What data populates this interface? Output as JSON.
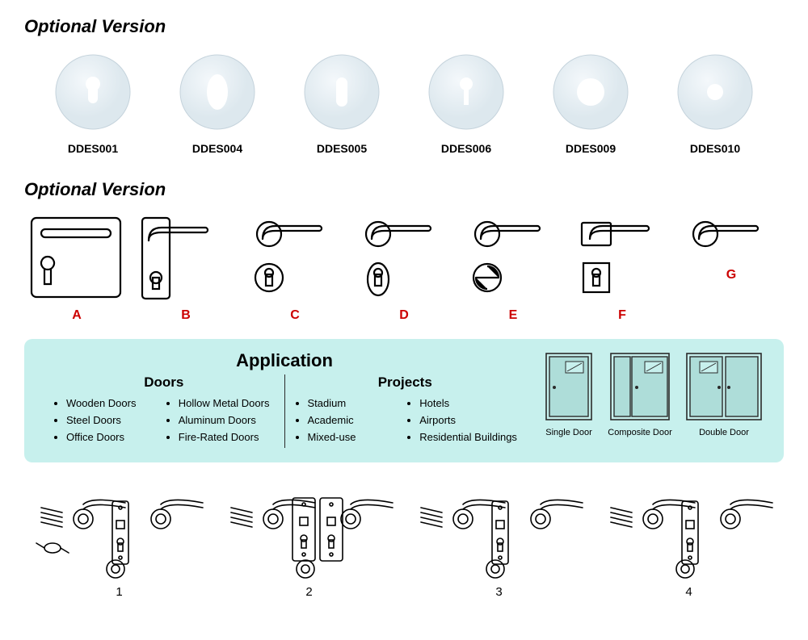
{
  "headings": {
    "optional1": "Optional Version",
    "optional2": "Optional Version"
  },
  "escutcheons": [
    {
      "code": "DDES001",
      "variant": "euro"
    },
    {
      "code": "DDES004",
      "variant": "oval"
    },
    {
      "code": "DDES005",
      "variant": "slot"
    },
    {
      "code": "DDES006",
      "variant": "keyhole"
    },
    {
      "code": "DDES009",
      "variant": "ring"
    },
    {
      "code": "DDES010",
      "variant": "hole"
    }
  ],
  "handles": [
    {
      "letter": "A",
      "variant": "plate-square"
    },
    {
      "letter": "B",
      "variant": "plate-narrow"
    },
    {
      "letter": "C",
      "variant": "rose-euro"
    },
    {
      "letter": "D",
      "variant": "rose-oval"
    },
    {
      "letter": "E",
      "variant": "rose-turn"
    },
    {
      "letter": "F",
      "variant": "rose-square"
    },
    {
      "letter": "G",
      "variant": "rose-only"
    }
  ],
  "application": {
    "title": "Application",
    "doors_heading": "Doors",
    "projects_heading": "Projects",
    "doors_col1": [
      "Wooden Doors",
      "Steel Doors",
      "Office Doors"
    ],
    "doors_col2": [
      "Hollow Metal Doors",
      "Aluminum Doors",
      "Fire-Rated Doors"
    ],
    "projects_col1": [
      "Stadium",
      "Academic",
      "Mixed-use"
    ],
    "projects_col2": [
      "Hotels",
      "Airports",
      "Residential Buildings"
    ],
    "door_types": [
      {
        "label": "Single Door",
        "variant": "single"
      },
      {
        "label": "Composite Door",
        "variant": "composite"
      },
      {
        "label": "Double Door",
        "variant": "double"
      }
    ]
  },
  "install_steps": [
    "1",
    "2",
    "3",
    "4"
  ],
  "colors": {
    "app_bg": "#c7f0ed",
    "letter": "#cc0000",
    "escutcheon_fill": "#dde8ee",
    "escutcheon_shadow": "#c5d3dc",
    "line": "#000000"
  }
}
